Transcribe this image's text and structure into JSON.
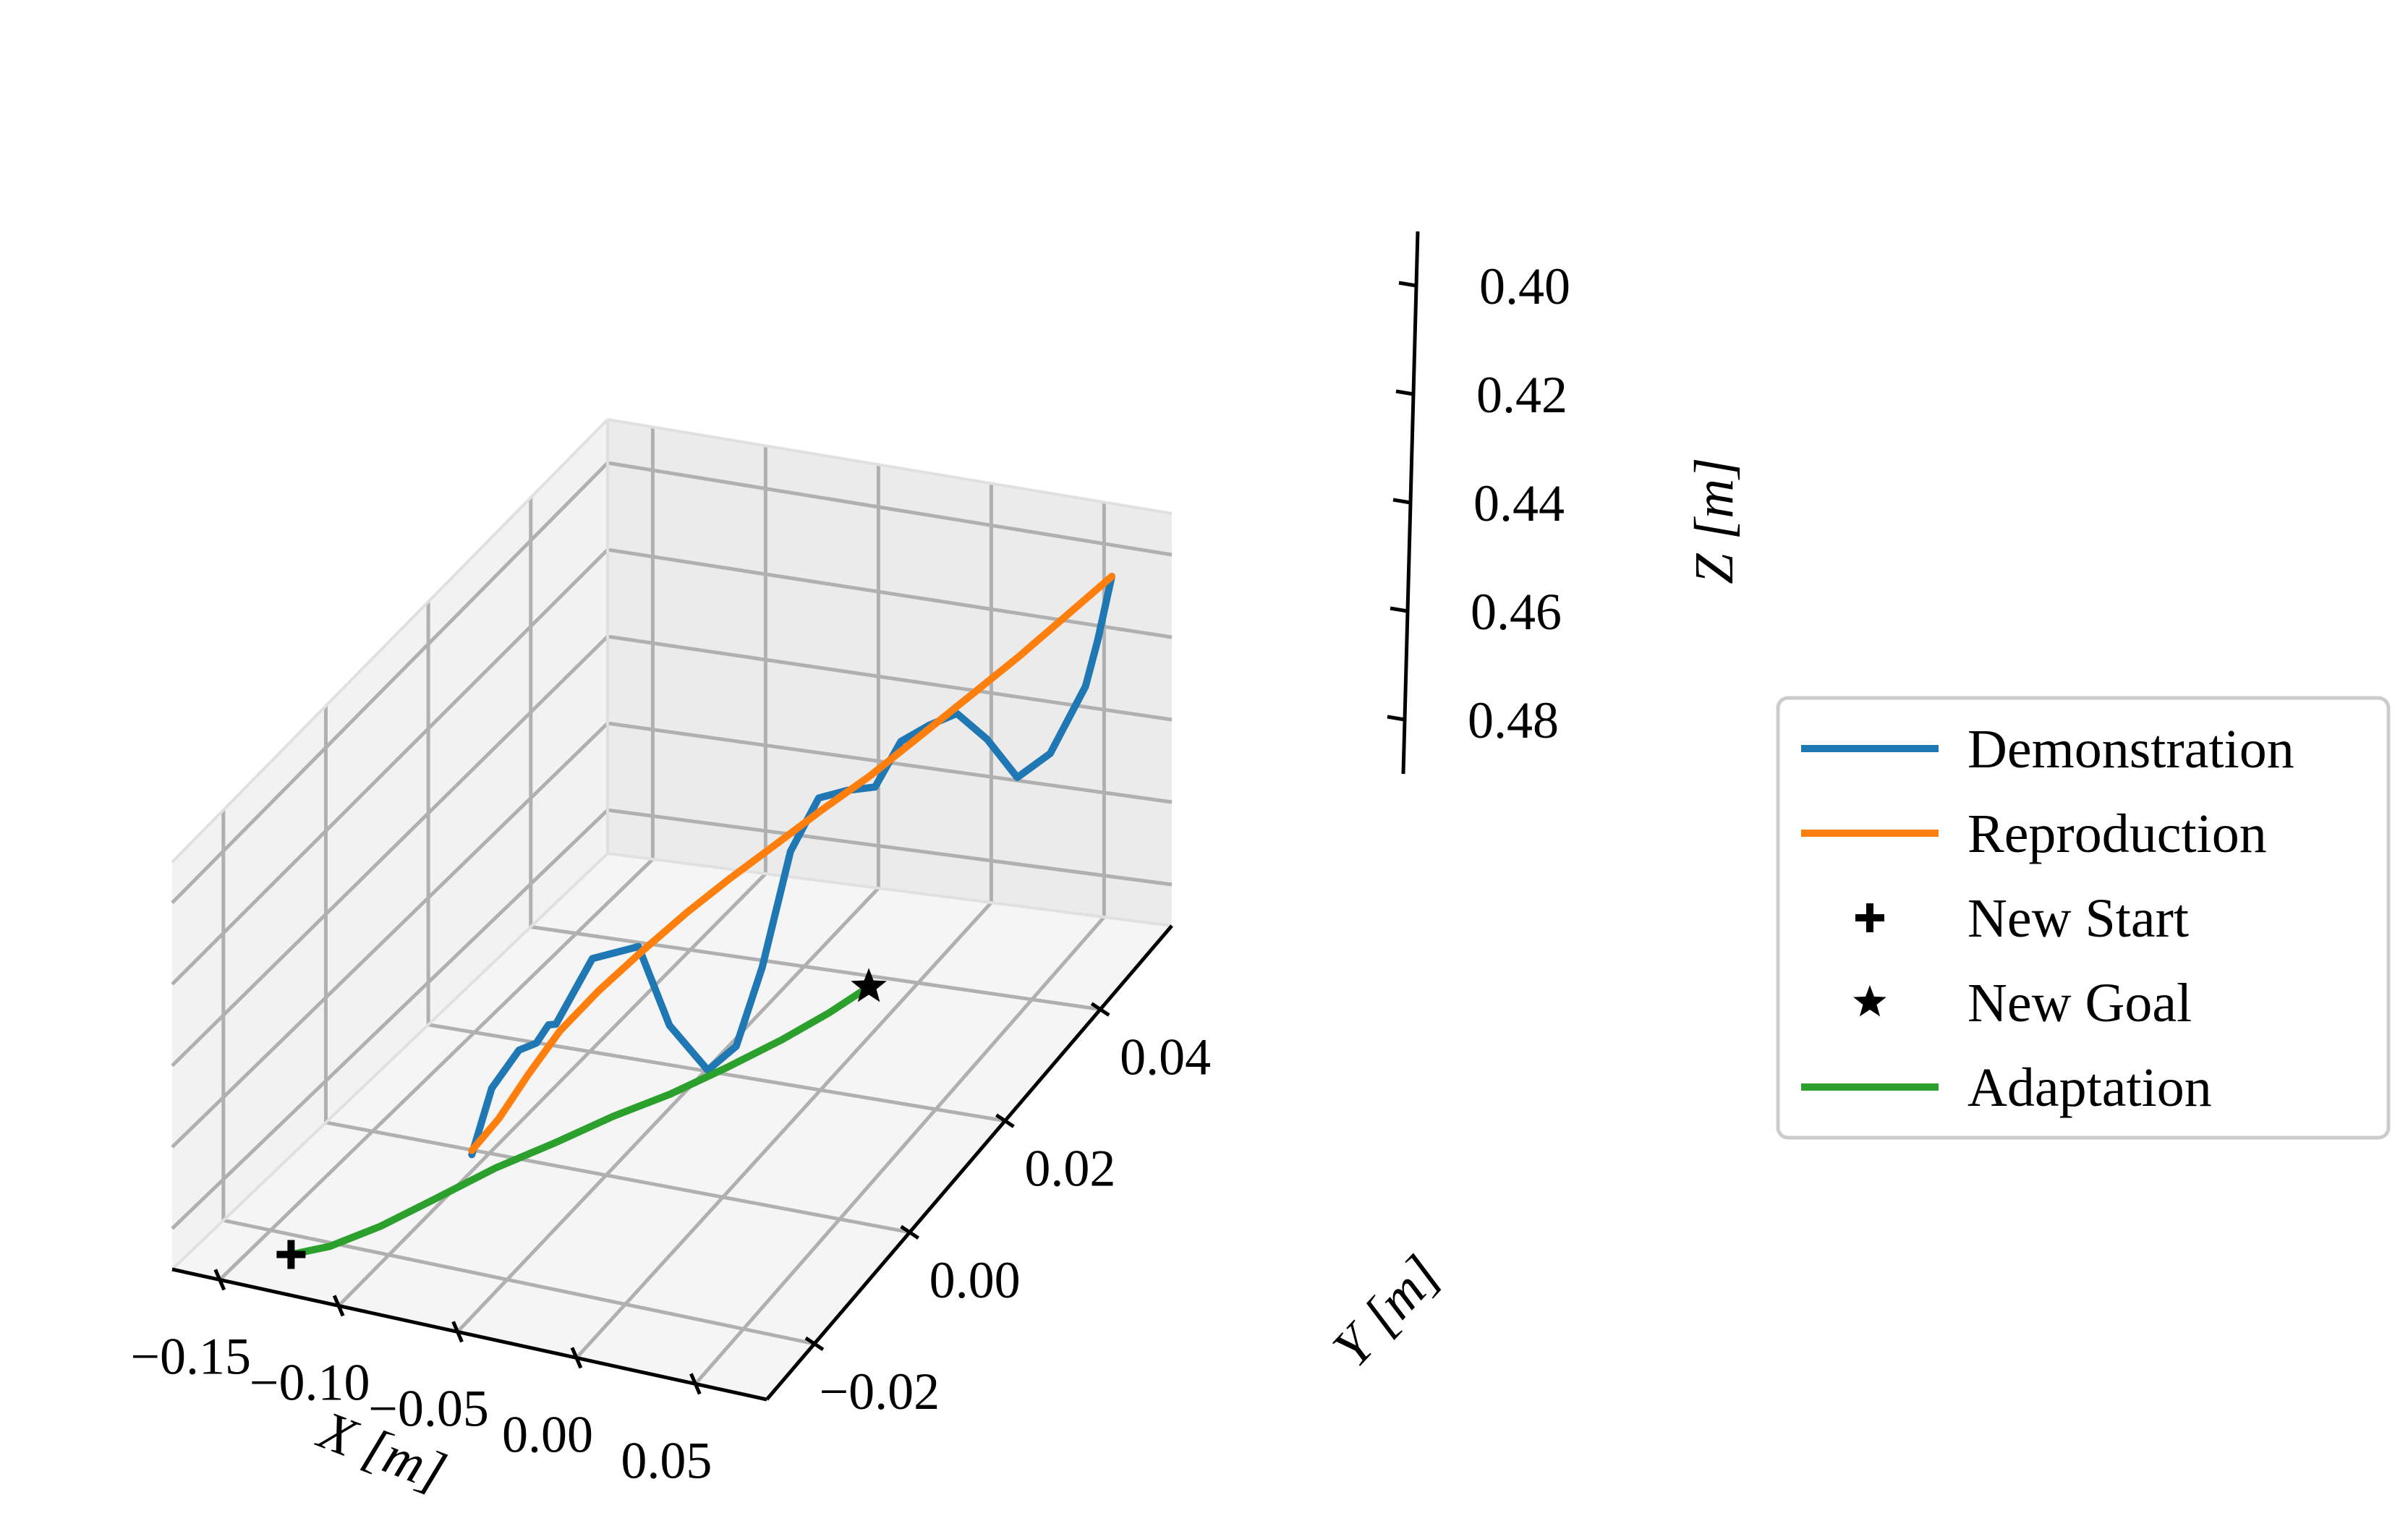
{
  "chart_data": {
    "type": "line",
    "projection": "3d",
    "title": "",
    "xlabel": "X [m]",
    "ylabel": "Y [m]",
    "zlabel": "Z [m]",
    "xlim": [
      -0.17,
      0.08
    ],
    "ylim": [
      -0.03,
      0.055
    ],
    "zlim": [
      0.39,
      0.49
    ],
    "z_axis_inverted": true,
    "x_ticks": [
      "−0.15",
      "−0.10",
      "−0.05",
      "0.00",
      "0.05"
    ],
    "y_ticks": [
      "−0.02",
      "0.00",
      "0.02",
      "0.04"
    ],
    "z_ticks": [
      "0.40",
      "0.42",
      "0.44",
      "0.46",
      "0.48"
    ],
    "grid": true,
    "legend_position": "right",
    "legend": [
      "Demonstration",
      "Reproduction",
      "New Start",
      "New Goal",
      "Adaptation"
    ],
    "series": [
      {
        "name": "Demonstration",
        "color": "#1f77b4",
        "kind": "line",
        "x": [
          -0.067,
          -0.067,
          -0.066,
          -0.065,
          -0.064,
          -0.063,
          -0.058,
          -0.051,
          -0.044,
          -0.036,
          -0.028,
          -0.021,
          -0.013,
          -0.005,
          0.003,
          0.011,
          0.018,
          0.026,
          0.034,
          0.043,
          0.052,
          0.058,
          0.063,
          0.062,
          0.064
        ],
        "y": [
          -0.019,
          -0.015,
          -0.01,
          -0.007,
          -0.005,
          -0.004,
          0.001,
          0.007,
          0.01,
          0.014,
          0.016,
          0.018,
          0.02,
          0.022,
          0.024,
          0.026,
          0.028,
          0.03,
          0.032,
          0.034,
          0.036,
          0.04,
          0.045,
          0.048,
          0.05
        ],
        "z": [
          0.463,
          0.452,
          0.449,
          0.451,
          0.449,
          0.45,
          0.44,
          0.444,
          0.466,
          0.481,
          0.477,
          0.46,
          0.434,
          0.423,
          0.423,
          0.424,
          0.415,
          0.413,
          0.412,
          0.42,
          0.431,
          0.43,
          0.42,
          0.413,
          0.4
        ]
      },
      {
        "name": "Reproduction",
        "color": "#ff7f0e",
        "kind": "line",
        "x": [
          -0.067,
          -0.064,
          -0.06,
          -0.055,
          -0.049,
          -0.041,
          -0.032,
          -0.022,
          -0.011,
          0.0,
          0.011,
          0.022,
          0.033,
          0.044,
          0.054,
          0.064
        ],
        "y": [
          -0.019,
          -0.015,
          -0.011,
          -0.007,
          -0.002,
          0.003,
          0.008,
          0.012,
          0.016,
          0.02,
          0.025,
          0.03,
          0.035,
          0.04,
          0.045,
          0.05
        ],
        "z": [
          0.462,
          0.459,
          0.453,
          0.447,
          0.443,
          0.439,
          0.435,
          0.431,
          0.427,
          0.423,
          0.42,
          0.416,
          0.412,
          0.408,
          0.404,
          0.4
        ]
      },
      {
        "name": "Adaptation",
        "color": "#2ca02c",
        "kind": "line",
        "x": [
          -0.12,
          -0.108,
          -0.093,
          -0.077,
          -0.061,
          -0.044,
          -0.028,
          -0.012,
          0.004,
          0.019,
          0.033,
          0.046
        ],
        "y": [
          -0.03,
          -0.028,
          -0.025,
          -0.021,
          -0.017,
          -0.013,
          -0.009,
          -0.005,
          -0.001,
          0.003,
          0.006,
          0.008
        ],
        "z": [
          0.48,
          0.479,
          0.476,
          0.472,
          0.468,
          0.465,
          0.462,
          0.46,
          0.457,
          0.454,
          0.45,
          0.445
        ]
      },
      {
        "name": "New Start",
        "color": "#000000",
        "kind": "marker",
        "marker": "plus",
        "x": [
          -0.12
        ],
        "y": [
          -0.03
        ],
        "z": [
          0.48
        ]
      },
      {
        "name": "New Goal",
        "color": "#000000",
        "kind": "marker",
        "marker": "star",
        "x": [
          0.046
        ],
        "y": [
          0.008
        ],
        "z": [
          0.445
        ]
      }
    ],
    "colors": {
      "pane_fill": "#f2f2f2",
      "grid": "#b0b0b0",
      "axis_line": "#000000",
      "legend_border": "#cccccc"
    }
  }
}
